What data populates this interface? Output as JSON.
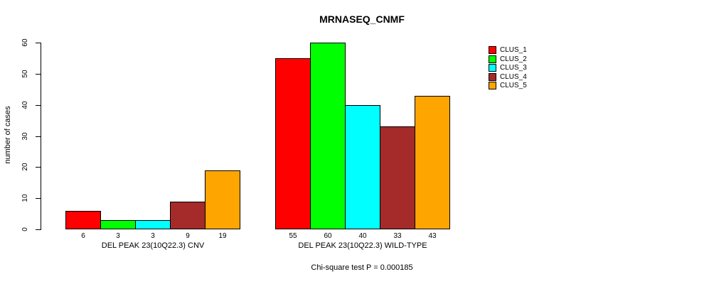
{
  "chart_data": {
    "type": "bar",
    "title": "MRNASEQ_CNMF",
    "ylabel": "number of cases",
    "ylim": [
      0,
      60
    ],
    "yticks": [
      0,
      10,
      20,
      30,
      40,
      50,
      60
    ],
    "grid": false,
    "legend_position": "right",
    "categories": [
      "DEL PEAK 23(10Q22.3) CNV",
      "DEL PEAK 23(10Q22.3) WILD-TYPE"
    ],
    "series": [
      {
        "name": "CLUS_1",
        "color": "#ff0000",
        "values": [
          6,
          55
        ]
      },
      {
        "name": "CLUS_2",
        "color": "#00ff00",
        "values": [
          3,
          60
        ]
      },
      {
        "name": "CLUS_3",
        "color": "#00ffff",
        "values": [
          3,
          40
        ]
      },
      {
        "name": "CLUS_4",
        "color": "#a52a2a",
        "values": [
          9,
          33
        ]
      },
      {
        "name": "CLUS_5",
        "color": "#ffa500",
        "values": [
          19,
          43
        ]
      }
    ],
    "bar_value_labels": [
      [
        "6",
        "3",
        "3",
        "9",
        "19"
      ],
      [
        "55",
        "60",
        "40",
        "33",
        "43"
      ]
    ],
    "caption": "Chi-square test P = 0.000185"
  }
}
